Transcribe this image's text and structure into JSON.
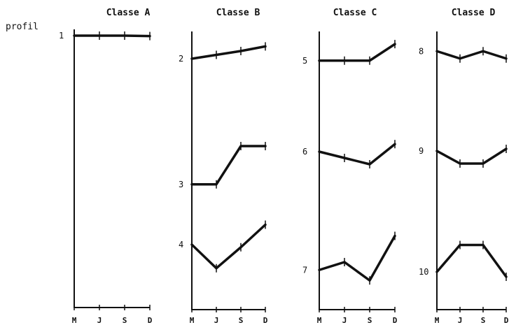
{
  "chart_data": {
    "type": "line",
    "title": "",
    "ylabel": "profil",
    "categories": [
      "M",
      "J",
      "S",
      "D"
    ],
    "grid": false,
    "classes": [
      {
        "name": "Classe A",
        "profiles": [
          {
            "name": "1",
            "values": [
              0.1,
              0.1,
              0.1,
              0.12
            ]
          }
        ]
      },
      {
        "name": "Classe B",
        "profiles": [
          {
            "name": "2",
            "values": [
              0.4,
              0.3,
              0.2,
              0.08
            ]
          },
          {
            "name": "3",
            "values": [
              0.85,
              0.85,
              0.12,
              0.12
            ]
          },
          {
            "name": "4",
            "values": [
              0.4,
              0.85,
              0.45,
              0.02
            ]
          }
        ]
      },
      {
        "name": "Classe C",
        "profiles": [
          {
            "name": "5",
            "values": [
              0.45,
              0.45,
              0.45,
              0.02
            ]
          },
          {
            "name": "6",
            "values": [
              0.2,
              0.35,
              0.5,
              0.02
            ]
          },
          {
            "name": "7",
            "values": [
              0.75,
              0.6,
              0.95,
              0.1
            ]
          }
        ]
      },
      {
        "name": "Classe D",
        "profiles": [
          {
            "name": "8",
            "values": [
              0.15,
              0.45,
              0.15,
              0.45
            ]
          },
          {
            "name": "9",
            "values": [
              0.1,
              0.4,
              0.4,
              0.05
            ]
          },
          {
            "name": "10",
            "values": [
              0.7,
              0.15,
              0.15,
              0.8
            ]
          }
        ]
      }
    ]
  }
}
